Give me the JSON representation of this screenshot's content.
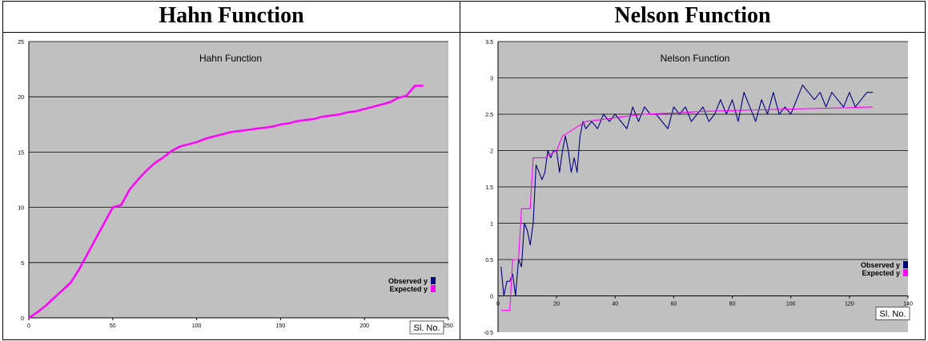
{
  "header": {
    "left_title": "Hahn Function",
    "right_title": "Nelson Function"
  },
  "colors": {
    "plot_bg": "#c0c0c0",
    "observed": "#000080",
    "expected": "#ff00ff",
    "gridline": "#000000"
  },
  "chart_data": [
    {
      "type": "line",
      "title": "Hahn Function",
      "xlabel": "Sl. No.",
      "ylabel": "",
      "xlim": [
        0,
        250
      ],
      "ylim": [
        0,
        25
      ],
      "xticks": [
        0,
        50,
        100,
        150,
        200,
        250
      ],
      "yticks": [
        0,
        5,
        10,
        15,
        20,
        25
      ],
      "grid": "horizontal",
      "legend_position": "bottom-right",
      "series": [
        {
          "name": "Observed y",
          "x": [
            0,
            5,
            10,
            15,
            20,
            25,
            30,
            35,
            40,
            45,
            50,
            55,
            60,
            65,
            70,
            75,
            80,
            85,
            90,
            95,
            100,
            105,
            110,
            115,
            120,
            125,
            130,
            135,
            140,
            145,
            150,
            155,
            160,
            165,
            170,
            175,
            180,
            185,
            190,
            195,
            200,
            205,
            210,
            215,
            220,
            225,
            230,
            235
          ],
          "y": [
            0.0,
            0.5,
            1.1,
            1.8,
            2.5,
            3.2,
            4.4,
            5.8,
            7.2,
            8.6,
            10.0,
            10.2,
            11.6,
            12.5,
            13.3,
            14.0,
            14.5,
            15.1,
            15.5,
            15.7,
            15.9,
            16.2,
            16.4,
            16.6,
            16.8,
            16.9,
            17.0,
            17.1,
            17.2,
            17.3,
            17.5,
            17.6,
            17.8,
            17.9,
            18.0,
            18.2,
            18.3,
            18.4,
            18.6,
            18.7,
            18.9,
            19.1,
            19.3,
            19.5,
            19.9,
            20.1,
            21.0,
            21.0
          ]
        },
        {
          "name": "Expected y",
          "x": [
            0,
            5,
            10,
            15,
            20,
            25,
            30,
            35,
            40,
            45,
            50,
            55,
            60,
            65,
            70,
            75,
            80,
            85,
            90,
            95,
            100,
            105,
            110,
            115,
            120,
            125,
            130,
            135,
            140,
            145,
            150,
            155,
            160,
            165,
            170,
            175,
            180,
            185,
            190,
            195,
            200,
            205,
            210,
            215,
            220,
            225,
            230,
            235
          ],
          "y": [
            0.0,
            0.5,
            1.1,
            1.8,
            2.5,
            3.2,
            4.4,
            5.8,
            7.2,
            8.6,
            10.0,
            10.2,
            11.6,
            12.5,
            13.3,
            14.0,
            14.5,
            15.1,
            15.5,
            15.7,
            15.9,
            16.2,
            16.4,
            16.6,
            16.8,
            16.9,
            17.0,
            17.1,
            17.2,
            17.3,
            17.5,
            17.6,
            17.8,
            17.9,
            18.0,
            18.2,
            18.3,
            18.4,
            18.6,
            18.7,
            18.9,
            19.1,
            19.3,
            19.5,
            19.9,
            20.1,
            21.0,
            21.0
          ]
        }
      ]
    },
    {
      "type": "line",
      "title": "Nelson Function",
      "xlabel": "Sl. No.",
      "ylabel": "",
      "xlim": [
        0,
        140
      ],
      "ylim": [
        -0.5,
        3.5
      ],
      "xticks": [
        0,
        20,
        40,
        60,
        80,
        100,
        120,
        140
      ],
      "yticks": [
        -0.5,
        0,
        0.5,
        1,
        1.5,
        2,
        2.5,
        3,
        3.5
      ],
      "grid": "horizontal",
      "legend_position": "bottom-right",
      "series": [
        {
          "name": "Observed y",
          "x": [
            1,
            2,
            3,
            4,
            5,
            6,
            7,
            8,
            9,
            10,
            11,
            12,
            13,
            14,
            15,
            16,
            17,
            18,
            19,
            20,
            21,
            22,
            23,
            24,
            25,
            26,
            27,
            28,
            29,
            30,
            32,
            34,
            36,
            38,
            40,
            42,
            44,
            46,
            48,
            50,
            52,
            54,
            56,
            58,
            60,
            62,
            64,
            66,
            68,
            70,
            72,
            74,
            76,
            78,
            80,
            82,
            84,
            86,
            88,
            90,
            92,
            94,
            96,
            98,
            100,
            102,
            104,
            106,
            108,
            110,
            112,
            114,
            116,
            118,
            120,
            122,
            124,
            126,
            128
          ],
          "y": [
            0.4,
            0.0,
            0.2,
            0.2,
            0.3,
            0.0,
            0.5,
            0.4,
            1.0,
            0.9,
            0.7,
            1.0,
            1.8,
            1.7,
            1.6,
            1.7,
            2.0,
            1.9,
            2.0,
            2.0,
            1.7,
            2.0,
            2.2,
            2.0,
            1.7,
            1.9,
            1.7,
            2.2,
            2.4,
            2.3,
            2.4,
            2.3,
            2.5,
            2.4,
            2.5,
            2.4,
            2.3,
            2.6,
            2.4,
            2.6,
            2.5,
            2.5,
            2.4,
            2.3,
            2.6,
            2.5,
            2.6,
            2.4,
            2.5,
            2.6,
            2.4,
            2.5,
            2.7,
            2.5,
            2.7,
            2.4,
            2.8,
            2.6,
            2.4,
            2.7,
            2.5,
            2.8,
            2.5,
            2.6,
            2.5,
            2.7,
            2.9,
            2.8,
            2.7,
            2.8,
            2.6,
            2.8,
            2.7,
            2.6,
            2.8,
            2.6,
            2.7,
            2.8,
            2.8
          ]
        },
        {
          "name": "Expected y",
          "x": [
            1,
            2,
            3,
            4,
            5,
            6,
            7,
            8,
            9,
            10,
            11,
            12,
            13,
            14,
            16,
            18,
            20,
            22,
            24,
            26,
            28,
            30,
            34,
            38,
            42,
            46,
            50,
            56,
            62,
            70,
            80,
            90,
            100,
            110,
            120,
            128
          ],
          "y": [
            -0.2,
            -0.2,
            -0.2,
            -0.2,
            0.5,
            0.5,
            0.5,
            1.2,
            1.2,
            1.2,
            1.2,
            1.9,
            1.9,
            1.9,
            1.9,
            1.95,
            2.0,
            2.2,
            2.25,
            2.3,
            2.35,
            2.4,
            2.42,
            2.44,
            2.46,
            2.48,
            2.5,
            2.51,
            2.52,
            2.54,
            2.55,
            2.56,
            2.57,
            2.58,
            2.59,
            2.6
          ]
        }
      ]
    }
  ]
}
